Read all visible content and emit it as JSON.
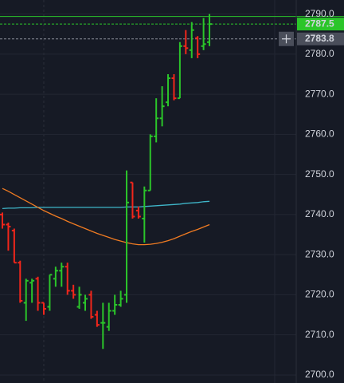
{
  "chart_data": {
    "type": "ohlc",
    "up_color": "#2bc52a",
    "down_color": "#f2261b",
    "open": [
      2740,
      2737.5,
      2736,
      2728,
      2718,
      2723,
      2724,
      2718,
      2717,
      2724,
      2726,
      2727,
      2721,
      2717,
      2718,
      2720,
      2715,
      2713,
      2712,
      2716,
      2717.5,
      2720,
      2748,
      2741,
      2739,
      2746,
      2759.5,
      2764,
      2768,
      2774,
      2769,
      2782,
      2781,
      2784,
      2782,
      2783
    ],
    "high": [
      2740.5,
      2738,
      2736.5,
      2728.5,
      2724,
      2724,
      2724.5,
      2718,
      2725,
      2727,
      2728,
      2728,
      2722.5,
      2722,
      2720,
      2721,
      2716,
      2718,
      2718,
      2720,
      2721,
      2751,
      2748,
      2742,
      2747,
      2760,
      2769,
      2772,
      2775,
      2775,
      2783,
      2786,
      2788,
      2784.5,
      2789,
      2790
    ],
    "low": [
      2736.5,
      2731,
      2728,
      2718,
      2713.5,
      2718,
      2716,
      2715,
      2716,
      2722,
      2722,
      2720,
      2719,
      2716.5,
      2716,
      2714,
      2712,
      2706.5,
      2711,
      2715,
      2717,
      2718,
      2739,
      2739,
      2733,
      2746,
      2758,
      2762,
      2767,
      2768.5,
      2769,
      2780,
      2779,
      2779,
      2781,
      2782
    ],
    "close": [
      2737.5,
      2737,
      2728,
      2718.5,
      2723.5,
      2723.5,
      2718,
      2716.5,
      2725,
      2726,
      2727,
      2721,
      2720,
      2720,
      2719,
      2714.5,
      2712.5,
      2713,
      2716,
      2717.5,
      2719,
      2743,
      2739.5,
      2739.5,
      2746,
      2759.5,
      2764,
      2767,
      2774,
      2769,
      2782,
      2781.5,
      2786,
      2780,
      2782.5,
      2787.5
    ],
    "series": [
      {
        "color": "#3fb6c9",
        "values": [
          2741.5,
          2741.6,
          2741.6,
          2741.7,
          2741.7,
          2741.7,
          2741.8,
          2741.8,
          2741.8,
          2741.8,
          2741.8,
          2741.8,
          2741.8,
          2741.8,
          2741.8,
          2741.8,
          2741.8,
          2741.8,
          2741.8,
          2741.8,
          2741.8,
          2741.9,
          2741.9,
          2741.9,
          2742,
          2742.1,
          2742.2,
          2742.3,
          2742.4,
          2742.5,
          2742.6,
          2742.8,
          2742.9,
          2743,
          2743.2,
          2743.3
        ]
      },
      {
        "color": "#f07b22",
        "values": [
          2746.5,
          2745.8,
          2745,
          2744.2,
          2743.4,
          2742.6,
          2741.8,
          2741,
          2740.3,
          2739.6,
          2739,
          2738.3,
          2737.7,
          2737.1,
          2736.5,
          2735.9,
          2735.3,
          2734.8,
          2734.3,
          2733.8,
          2733.4,
          2733,
          2732.7,
          2732.5,
          2732.5,
          2732.6,
          2732.8,
          2733.1,
          2733.5,
          2734,
          2734.6,
          2735.2,
          2735.8,
          2736.3,
          2736.9,
          2737.5
        ]
      }
    ],
    "ylim": [
      2698,
      2793.5
    ],
    "yticks": [
      {
        "value": 2700,
        "label": "2700.0"
      },
      {
        "value": 2710,
        "label": "2710.0"
      },
      {
        "value": 2720,
        "label": "2720.0"
      },
      {
        "value": 2730,
        "label": "2730.0"
      },
      {
        "value": 2740,
        "label": "2740.0"
      },
      {
        "value": 2750,
        "label": "2750.0"
      },
      {
        "value": 2760,
        "label": "2760.0"
      },
      {
        "value": 2770,
        "label": "2770.0"
      },
      {
        "value": 2780,
        "label": "2780.0"
      },
      {
        "value": 2790,
        "label": "2790.0"
      }
    ],
    "grid": true,
    "price_lines": [
      {
        "value": 2789.4,
        "color": "#2bc52a",
        "style": "solid"
      },
      {
        "value": 2787.5,
        "color": "#2bc52a",
        "style": "dashed",
        "label": "2787.5"
      },
      {
        "value": 2783.8,
        "color": "#8a8e99",
        "style": "dashed",
        "label": "2783.8"
      }
    ]
  }
}
